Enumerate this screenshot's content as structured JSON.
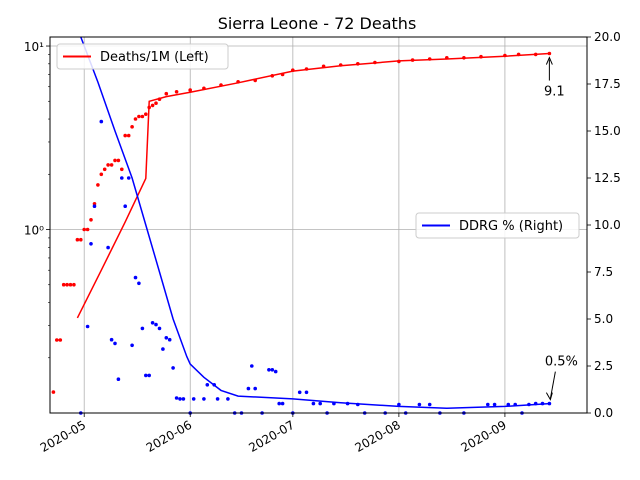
{
  "chart_data": {
    "type": "line",
    "title": "Sierra Leone - 72 Deaths",
    "x_axis": {
      "type": "date",
      "range": [
        "2020-04-21",
        "2020-09-25"
      ],
      "ticks": [
        "2020-05-01",
        "2020-06-01",
        "2020-07-01",
        "2020-08-01",
        "2020-09-01"
      ],
      "tick_labels": [
        "2020-05",
        "2020-06",
        "2020-07",
        "2020-08",
        "2020-09"
      ],
      "grid": true
    },
    "y_left": {
      "scale": "log",
      "range": [
        0.1,
        11.2
      ],
      "ticks": [
        1,
        10
      ],
      "tick_labels": [
        "10⁰",
        "10¹"
      ],
      "grid": true
    },
    "y_right": {
      "scale": "linear",
      "range": [
        0,
        20
      ],
      "ticks": [
        0,
        2.5,
        5,
        7.5,
        10,
        12.5,
        15,
        17.5,
        20
      ],
      "tick_labels": [
        "0.0",
        "2.5",
        "5.0",
        "7.5",
        "10.0",
        "12.5",
        "15.0",
        "17.5",
        "20.0"
      ]
    },
    "legends": [
      {
        "label": "Deaths/1M (Left)",
        "color": "#ff0000",
        "placement": "upper-left"
      },
      {
        "label": "DDRG % (Right)",
        "color": "#0000ff",
        "placement": "center-right"
      }
    ],
    "series": [
      {
        "name": "Deaths/1M (Left)",
        "axis": "left",
        "color": "#ff0000",
        "line": [
          [
            "2020-04-29",
            0.33
          ],
          [
            "2020-05-06",
            0.6
          ],
          [
            "2020-05-13",
            1.1
          ],
          [
            "2020-05-19",
            1.9
          ],
          [
            "2020-05-20",
            5.0
          ],
          [
            "2020-05-25",
            5.3
          ],
          [
            "2020-06-01",
            5.6
          ],
          [
            "2020-06-15",
            6.3
          ],
          [
            "2020-07-01",
            7.3
          ],
          [
            "2020-07-15",
            7.8
          ],
          [
            "2020-08-01",
            8.3
          ],
          [
            "2020-08-15",
            8.5
          ],
          [
            "2020-09-01",
            8.8
          ],
          [
            "2020-09-14",
            9.1
          ]
        ],
        "points": [
          [
            "2020-04-22",
            0.13
          ],
          [
            "2020-04-23",
            0.25
          ],
          [
            "2020-04-24",
            0.25
          ],
          [
            "2020-04-25",
            0.5
          ],
          [
            "2020-04-26",
            0.5
          ],
          [
            "2020-04-27",
            0.5
          ],
          [
            "2020-04-28",
            0.5
          ],
          [
            "2020-04-29",
            0.88
          ],
          [
            "2020-04-30",
            0.88
          ],
          [
            "2020-05-01",
            1.0
          ],
          [
            "2020-05-02",
            1.0
          ],
          [
            "2020-05-03",
            1.13
          ],
          [
            "2020-05-04",
            1.38
          ],
          [
            "2020-05-05",
            1.75
          ],
          [
            "2020-05-06",
            2.0
          ],
          [
            "2020-05-07",
            2.13
          ],
          [
            "2020-05-08",
            2.25
          ],
          [
            "2020-05-09",
            2.25
          ],
          [
            "2020-05-10",
            2.38
          ],
          [
            "2020-05-11",
            2.38
          ],
          [
            "2020-05-12",
            2.13
          ],
          [
            "2020-05-13",
            3.25
          ],
          [
            "2020-05-14",
            3.25
          ],
          [
            "2020-05-15",
            3.63
          ],
          [
            "2020-05-16",
            4.0
          ],
          [
            "2020-05-17",
            4.13
          ],
          [
            "2020-05-18",
            4.13
          ],
          [
            "2020-05-19",
            4.25
          ],
          [
            "2020-05-20",
            4.63
          ],
          [
            "2020-05-21",
            4.75
          ],
          [
            "2020-05-22",
            4.88
          ],
          [
            "2020-05-23",
            5.13
          ],
          [
            "2020-05-25",
            5.5
          ],
          [
            "2020-05-28",
            5.63
          ],
          [
            "2020-06-01",
            5.75
          ],
          [
            "2020-06-05",
            5.88
          ],
          [
            "2020-06-10",
            6.13
          ],
          [
            "2020-06-15",
            6.38
          ],
          [
            "2020-06-20",
            6.5
          ],
          [
            "2020-06-25",
            6.88
          ],
          [
            "2020-06-28",
            7.0
          ],
          [
            "2020-07-01",
            7.38
          ],
          [
            "2020-07-05",
            7.5
          ],
          [
            "2020-07-10",
            7.75
          ],
          [
            "2020-07-15",
            7.88
          ],
          [
            "2020-07-20",
            8.0
          ],
          [
            "2020-07-25",
            8.13
          ],
          [
            "2020-08-01",
            8.25
          ],
          [
            "2020-08-05",
            8.38
          ],
          [
            "2020-08-10",
            8.5
          ],
          [
            "2020-08-15",
            8.63
          ],
          [
            "2020-08-20",
            8.63
          ],
          [
            "2020-08-25",
            8.75
          ],
          [
            "2020-09-01",
            8.88
          ],
          [
            "2020-09-05",
            9.0
          ],
          [
            "2020-09-10",
            9.0
          ],
          [
            "2020-09-14",
            9.1
          ]
        ]
      },
      {
        "name": "DDRG % (Right)",
        "axis": "right",
        "color": "#0000ff",
        "line": [
          [
            "2020-04-30",
            20.0
          ],
          [
            "2020-05-05",
            17.6
          ],
          [
            "2020-05-10",
            15.0
          ],
          [
            "2020-05-15",
            12.5
          ],
          [
            "2020-05-19",
            10.0
          ],
          [
            "2020-05-23",
            7.5
          ],
          [
            "2020-05-27",
            5.0
          ],
          [
            "2020-05-31",
            3.0
          ],
          [
            "2020-06-01",
            2.6
          ],
          [
            "2020-06-05",
            1.9
          ],
          [
            "2020-06-10",
            1.2
          ],
          [
            "2020-06-15",
            0.9
          ],
          [
            "2020-07-01",
            0.75
          ],
          [
            "2020-07-15",
            0.55
          ],
          [
            "2020-08-01",
            0.35
          ],
          [
            "2020-08-15",
            0.25
          ],
          [
            "2020-09-01",
            0.35
          ],
          [
            "2020-09-14",
            0.5
          ]
        ],
        "points": [
          [
            "2020-04-30",
            0.0
          ],
          [
            "2020-05-02",
            4.6
          ],
          [
            "2020-05-03",
            9.0
          ],
          [
            "2020-05-04",
            11.0
          ],
          [
            "2020-05-06",
            15.5
          ],
          [
            "2020-05-08",
            8.8
          ],
          [
            "2020-05-09",
            3.9
          ],
          [
            "2020-05-10",
            3.7
          ],
          [
            "2020-05-11",
            1.8
          ],
          [
            "2020-05-12",
            12.5
          ],
          [
            "2020-05-13",
            11.0
          ],
          [
            "2020-05-14",
            12.5
          ],
          [
            "2020-05-15",
            3.6
          ],
          [
            "2020-05-16",
            7.2
          ],
          [
            "2020-05-17",
            6.9
          ],
          [
            "2020-05-18",
            4.5
          ],
          [
            "2020-05-19",
            2.0
          ],
          [
            "2020-05-20",
            2.0
          ],
          [
            "2020-05-21",
            4.8
          ],
          [
            "2020-05-22",
            4.7
          ],
          [
            "2020-05-23",
            4.5
          ],
          [
            "2020-05-24",
            3.4
          ],
          [
            "2020-05-25",
            4.0
          ],
          [
            "2020-05-26",
            3.9
          ],
          [
            "2020-05-27",
            2.4
          ],
          [
            "2020-05-28",
            0.8
          ],
          [
            "2020-05-29",
            0.75
          ],
          [
            "2020-05-30",
            0.75
          ],
          [
            "2020-06-01",
            0.0
          ],
          [
            "2020-06-02",
            0.75
          ],
          [
            "2020-06-05",
            0.75
          ],
          [
            "2020-06-06",
            1.5
          ],
          [
            "2020-06-08",
            1.5
          ],
          [
            "2020-06-09",
            0.75
          ],
          [
            "2020-06-12",
            0.75
          ],
          [
            "2020-06-14",
            0.0
          ],
          [
            "2020-06-16",
            0.0
          ],
          [
            "2020-06-18",
            1.3
          ],
          [
            "2020-06-19",
            2.5
          ],
          [
            "2020-06-20",
            1.3
          ],
          [
            "2020-06-22",
            0.0
          ],
          [
            "2020-06-24",
            2.3
          ],
          [
            "2020-06-25",
            2.3
          ],
          [
            "2020-06-26",
            2.2
          ],
          [
            "2020-06-27",
            0.5
          ],
          [
            "2020-06-28",
            0.5
          ],
          [
            "2020-07-01",
            0.0
          ],
          [
            "2020-07-03",
            1.1
          ],
          [
            "2020-07-05",
            1.1
          ],
          [
            "2020-07-07",
            0.5
          ],
          [
            "2020-07-09",
            0.5
          ],
          [
            "2020-07-11",
            0.0
          ],
          [
            "2020-07-13",
            0.5
          ],
          [
            "2020-07-17",
            0.5
          ],
          [
            "2020-07-20",
            0.45
          ],
          [
            "2020-07-22",
            0.0
          ],
          [
            "2020-07-28",
            0.0
          ],
          [
            "2020-08-01",
            0.45
          ],
          [
            "2020-08-03",
            0.0
          ],
          [
            "2020-08-07",
            0.45
          ],
          [
            "2020-08-10",
            0.45
          ],
          [
            "2020-08-13",
            0.0
          ],
          [
            "2020-08-20",
            0.0
          ],
          [
            "2020-08-27",
            0.45
          ],
          [
            "2020-08-29",
            0.45
          ],
          [
            "2020-09-02",
            0.45
          ],
          [
            "2020-09-04",
            0.45
          ],
          [
            "2020-09-06",
            0.0
          ],
          [
            "2020-09-08",
            0.45
          ],
          [
            "2020-09-10",
            0.5
          ],
          [
            "2020-09-12",
            0.5
          ],
          [
            "2020-09-14",
            0.5
          ]
        ]
      }
    ],
    "annotations": [
      {
        "text": "9.1",
        "x": "2020-09-14",
        "y": 9.1,
        "axis": "left"
      },
      {
        "text": "0.5%",
        "x": "2020-09-14",
        "y": 0.5,
        "axis": "right"
      }
    ]
  }
}
